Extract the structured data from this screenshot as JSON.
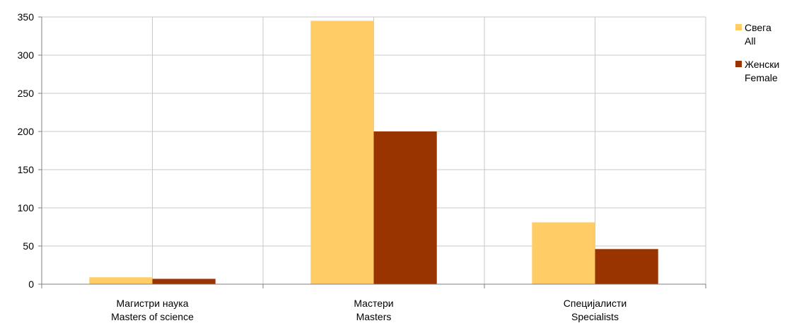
{
  "chart_data": {
    "type": "bar",
    "categories": [
      [
        "Магистри наука",
        "Masters of science"
      ],
      [
        "Мастери",
        "Masters"
      ],
      [
        "Специјалисти",
        "Specialists"
      ]
    ],
    "series": [
      {
        "name": [
          "Свега",
          "All"
        ],
        "color": "#FFCC66",
        "values": [
          9,
          345,
          81
        ]
      },
      {
        "name": [
          "Женски",
          "Female"
        ],
        "color": "#993300",
        "values": [
          7,
          200,
          46
        ]
      }
    ],
    "ylim": [
      0,
      350
    ],
    "yticks": [
      0,
      50,
      100,
      150,
      200,
      250,
      300,
      350
    ],
    "grid": true,
    "legend": "right"
  }
}
